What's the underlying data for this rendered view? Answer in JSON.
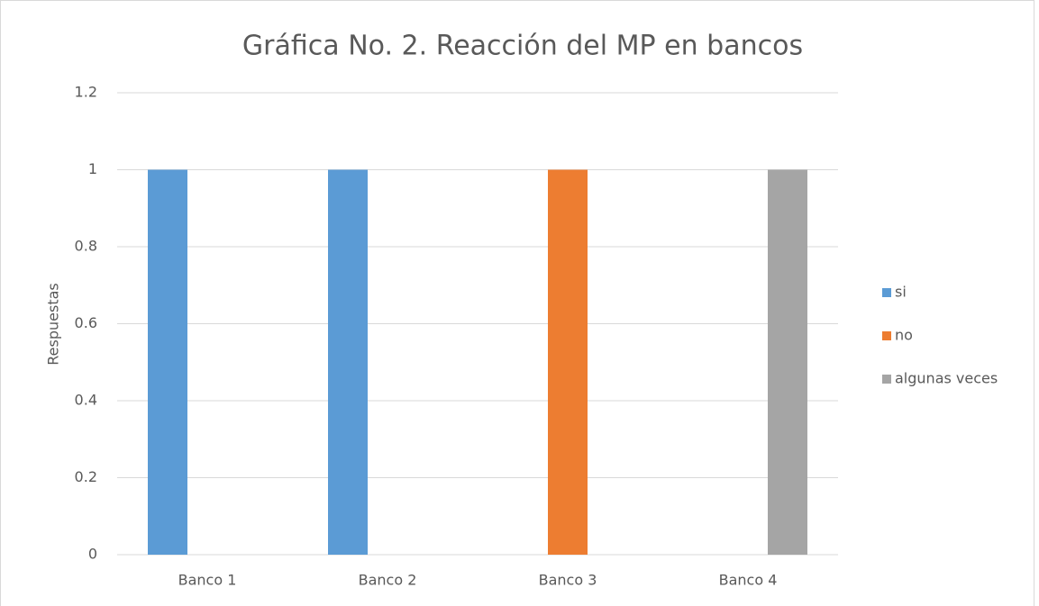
{
  "chart_data": {
    "type": "bar",
    "title": "Gráfica No. 2. Reacción del MP en bancos",
    "y_label": "Respuestas",
    "categories": [
      "Banco 1",
      "Banco 2",
      "Banco 3",
      "Banco 4"
    ],
    "series": [
      {
        "name": "si",
        "color": "#5b9bd5",
        "values": [
          1,
          1,
          0,
          0
        ]
      },
      {
        "name": "no",
        "color": "#ed7d31",
        "values": [
          0,
          0,
          1,
          0
        ]
      },
      {
        "name": "algunas veces",
        "color": "#a5a5a5",
        "values": [
          0,
          0,
          0,
          1
        ]
      }
    ],
    "ylim": [
      0,
      1.2
    ],
    "yticks": [
      0,
      0.2,
      0.4,
      0.6,
      0.8,
      1,
      1.2
    ],
    "grid": true,
    "legend": "right"
  }
}
